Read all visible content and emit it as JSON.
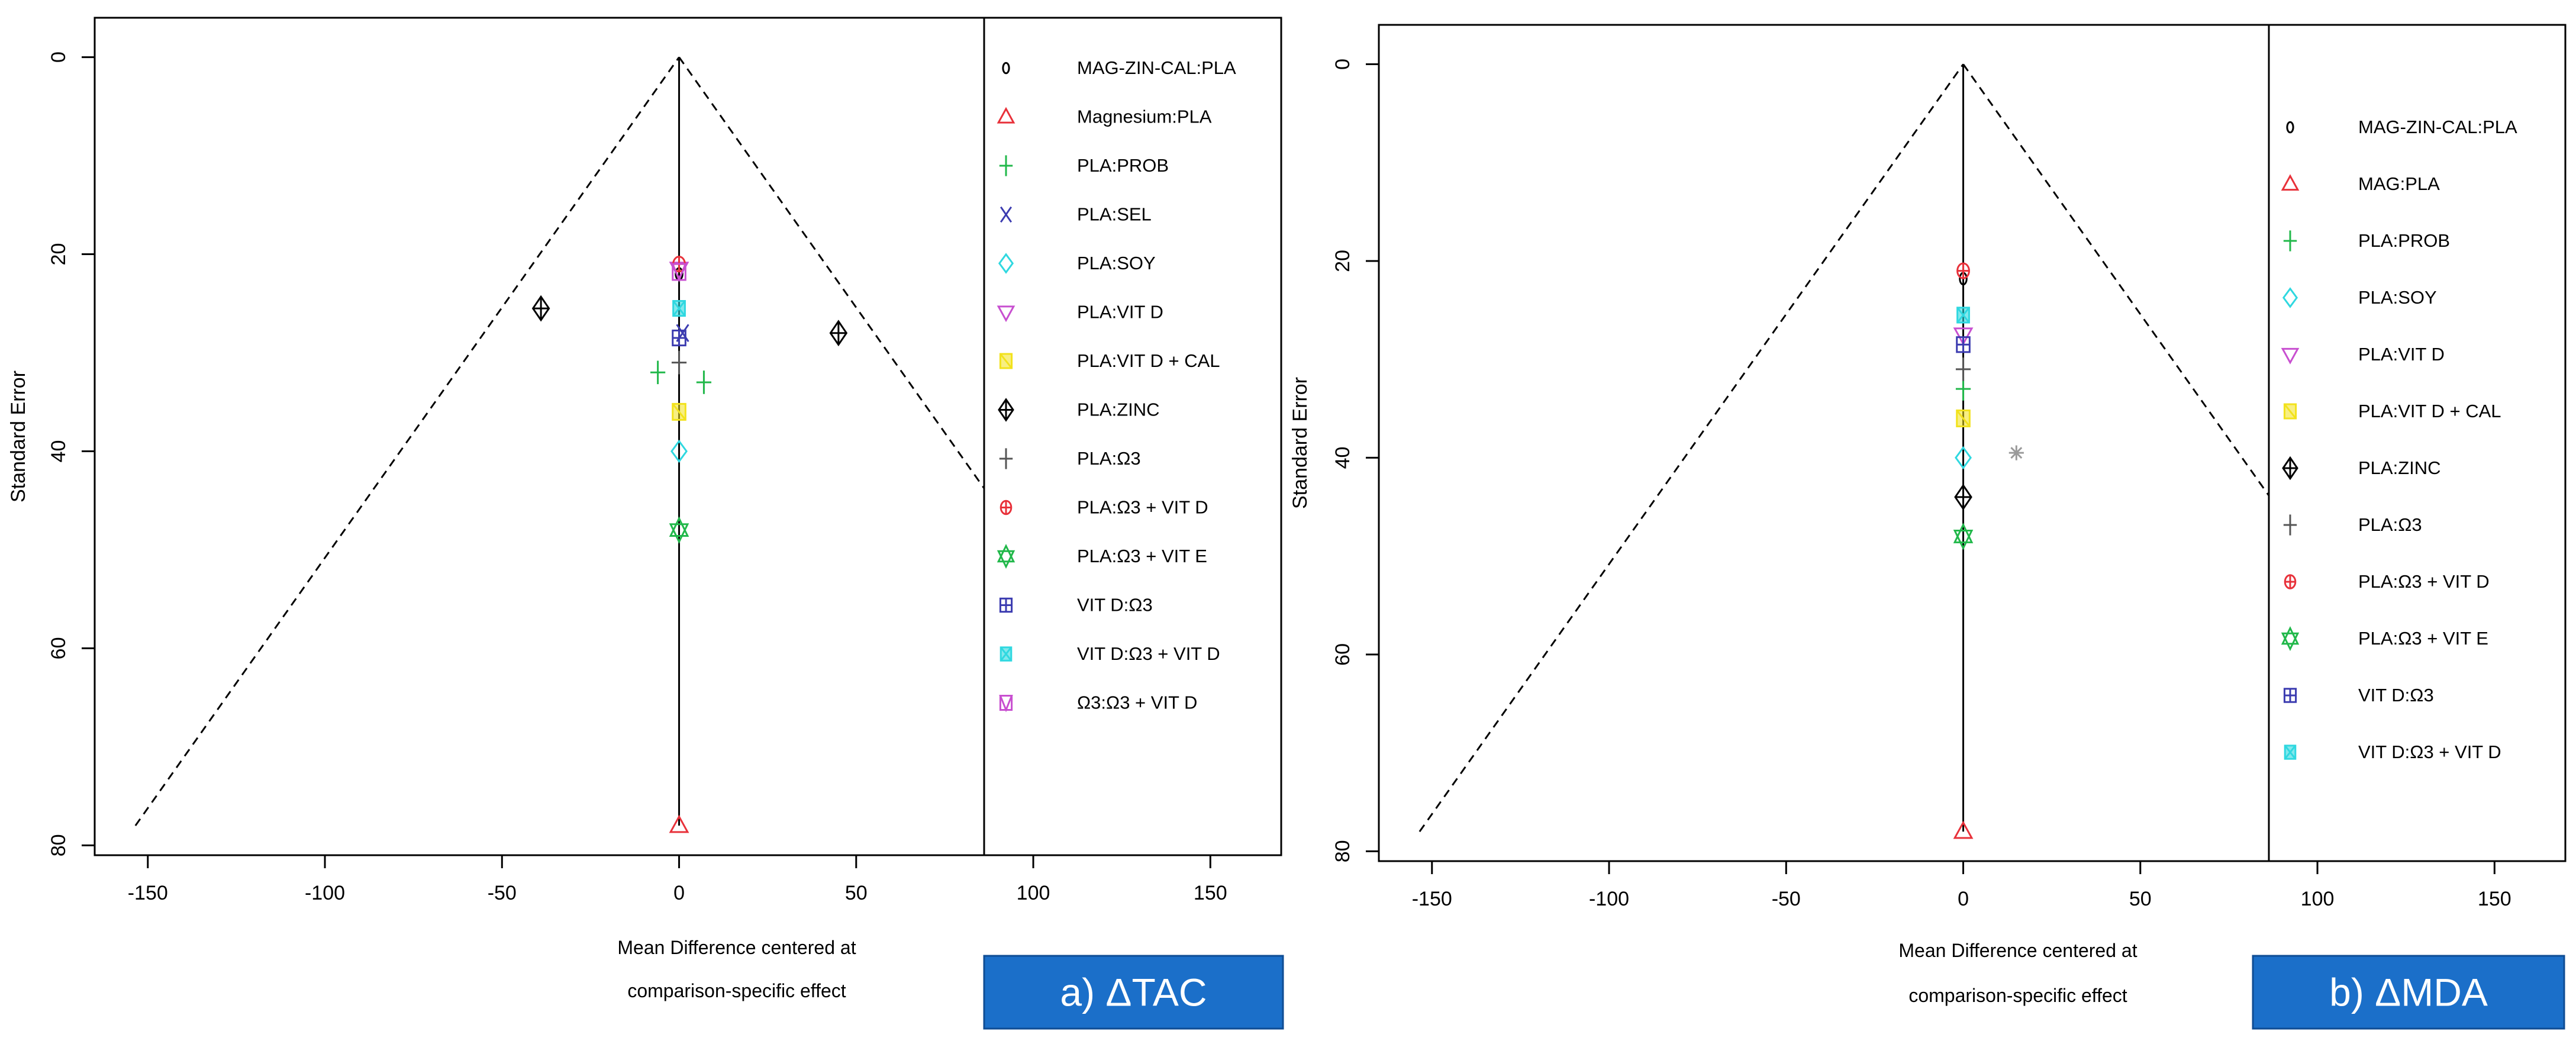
{
  "chart_data": [
    {
      "type": "scatter",
      "subtype": "comparison-adjusted funnel plot",
      "panel_label": "a) ΔTAC",
      "xlabel_line1": "Mean Difference centered at",
      "xlabel_line2": "comparison-specific effect",
      "ylabel": "Standard Error",
      "xlim": [
        -165,
        170
      ],
      "ylim": [
        -4,
        81
      ],
      "y_reversed": true,
      "xticks": [
        -150,
        -100,
        -50,
        0,
        50,
        100,
        150
      ],
      "yticks": [
        0,
        20,
        40,
        60,
        80
      ],
      "funnel": {
        "apex": [
          0,
          0
        ],
        "left": [
          -153.5,
          78
        ],
        "right": [
          153.5,
          78
        ]
      },
      "grid": false,
      "legend_position": "right",
      "series": [
        {
          "name": "MAG-ZIN-CAL:PLA",
          "marker": "circle-small",
          "color": "#000000",
          "points": [
            [
              0,
              22
            ]
          ]
        },
        {
          "name": "Magnesium:PLA",
          "marker": "triangle",
          "color": "#e8313a",
          "points": [
            [
              0,
              78
            ]
          ]
        },
        {
          "name": "PLA:PROB",
          "marker": "plus",
          "color": "#21b84a",
          "points": [
            [
              -6,
              32
            ],
            [
              7,
              33
            ]
          ]
        },
        {
          "name": "PLA:SEL",
          "marker": "x",
          "color": "#3b3bb0",
          "points": [
            [
              1,
              28
            ]
          ]
        },
        {
          "name": "PLA:SOY",
          "marker": "diamond",
          "color": "#2fd8e0",
          "points": [
            [
              0,
              40
            ]
          ]
        },
        {
          "name": "PLA:VIT D",
          "marker": "triangle-down",
          "color": "#c84fd0",
          "points": [
            [
              0,
              21.5
            ]
          ]
        },
        {
          "name": "PLA:VIT D + CAL",
          "marker": "square-x",
          "color": "#f2e21c",
          "points": [
            [
              0,
              36
            ]
          ]
        },
        {
          "name": "PLA:ZINC",
          "marker": "diamond-plus",
          "color": "#000000",
          "points": [
            [
              -39,
              25.5
            ],
            [
              45,
              28
            ]
          ]
        },
        {
          "name": "PLA:Ω3",
          "marker": "plus-thin",
          "color": "#555555",
          "points": [
            [
              0,
              31
            ]
          ]
        },
        {
          "name": "PLA:Ω3 + VIT D",
          "marker": "circle-plus",
          "color": "#e8313a",
          "points": [
            [
              0,
              21
            ]
          ]
        },
        {
          "name": "PLA:Ω3 + VIT E",
          "marker": "star-of-david",
          "color": "#21b84a",
          "points": [
            [
              0,
              48
            ]
          ]
        },
        {
          "name": "VIT D:Ω3",
          "marker": "square-plus",
          "color": "#3b3bb0",
          "points": [
            [
              0,
              28.5
            ]
          ]
        },
        {
          "name": "VIT D:Ω3 + VIT D",
          "marker": "asterisk-box",
          "color": "#2fd8e0",
          "points": [
            [
              0,
              25.5
            ]
          ]
        },
        {
          "name": "Ω3:Ω3 + VIT D",
          "marker": "square-tri",
          "color": "#c84fd0",
          "points": [
            [
              0,
              21.8
            ]
          ]
        }
      ]
    },
    {
      "type": "scatter",
      "subtype": "comparison-adjusted funnel plot",
      "panel_label": "b) ΔMDA",
      "xlabel_line1": "Mean Difference centered at",
      "xlabel_line2": "comparison-specific effect",
      "ylabel": "Standard Error",
      "xlim": [
        -165,
        170
      ],
      "ylim": [
        -4,
        81
      ],
      "y_reversed": true,
      "xticks": [
        -150,
        -100,
        -50,
        0,
        50,
        100,
        150
      ],
      "yticks": [
        0,
        20,
        40,
        60,
        80
      ],
      "funnel": {
        "apex": [
          0,
          0
        ],
        "left": [
          -153.5,
          78
        ],
        "right": [
          153.5,
          78
        ]
      },
      "grid": false,
      "legend_position": "right",
      "series": [
        {
          "name": "MAG-ZIN-CAL:PLA",
          "marker": "circle-small",
          "color": "#000000",
          "points": [
            [
              0,
              21.8
            ]
          ]
        },
        {
          "name": "MAG:PLA",
          "marker": "triangle",
          "color": "#e8313a",
          "points": [
            [
              0,
              78
            ]
          ]
        },
        {
          "name": "PLA:PROB",
          "marker": "plus",
          "color": "#21b84a",
          "points": [
            [
              0,
              33
            ]
          ]
        },
        {
          "name": "PLA:SOY",
          "marker": "diamond",
          "color": "#2fd8e0",
          "points": [
            [
              0,
              40
            ]
          ]
        },
        {
          "name": "PLA:VIT D",
          "marker": "triangle-down",
          "color": "#c84fd0",
          "points": [
            [
              0,
              27.5
            ]
          ]
        },
        {
          "name": "PLA:VIT D + CAL",
          "marker": "square-x",
          "color": "#f2e21c",
          "points": [
            [
              0,
              36
            ]
          ]
        },
        {
          "name": "PLA:ZINC",
          "marker": "diamond-plus",
          "color": "#000000",
          "points": [
            [
              0,
              44
            ]
          ]
        },
        {
          "name": "PLA:Ω3",
          "marker": "plus-thin",
          "color": "#555555",
          "points": [
            [
              0,
              31
            ]
          ]
        },
        {
          "name": "PLA:Ω3 + VIT D",
          "marker": "circle-plus",
          "color": "#e8313a",
          "points": [
            [
              0,
              21
            ]
          ]
        },
        {
          "name": "PLA:Ω3 + VIT E",
          "marker": "star-of-david",
          "color": "#21b84a",
          "points": [
            [
              0,
              48
            ]
          ]
        },
        {
          "name": "VIT D:Ω3",
          "marker": "square-plus",
          "color": "#3b3bb0",
          "points": [
            [
              0,
              28.5
            ]
          ]
        },
        {
          "name": "VIT D:Ω3 + VIT D",
          "marker": "asterisk-box",
          "color": "#2fd8e0",
          "points": [
            [
              0,
              25.5
            ]
          ]
        }
      ],
      "extra_points": [
        {
          "marker": "asterisk",
          "color": "#9a9a9a",
          "points": [
            [
              15,
              39.5
            ]
          ]
        }
      ]
    }
  ]
}
